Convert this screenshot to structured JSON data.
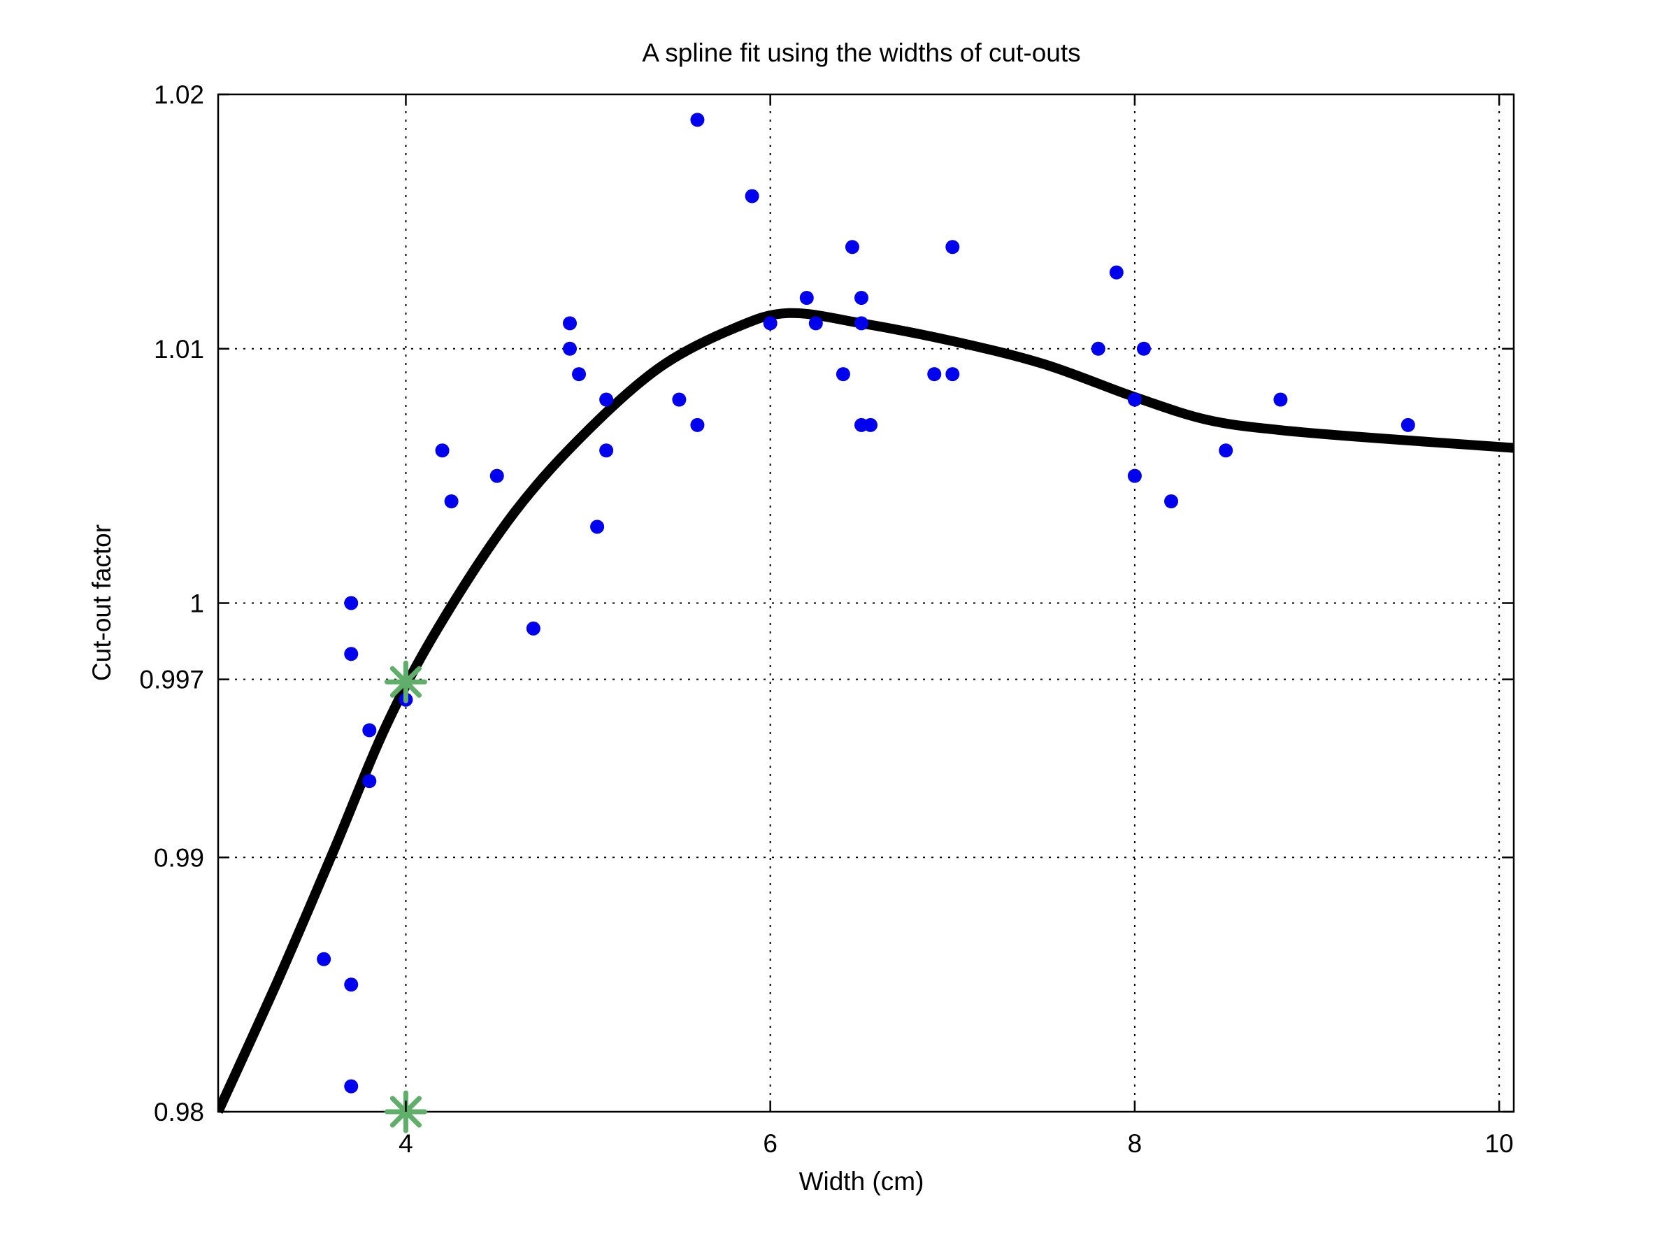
{
  "chart_data": {
    "type": "scatter",
    "title": "A spline fit using the widths of cut-outs",
    "xlabel": "Width (cm)",
    "ylabel": "Cut-out factor",
    "xlim": [
      2.97,
      10.08
    ],
    "ylim": [
      0.98,
      1.02
    ],
    "xticks": [
      4,
      6,
      8,
      10
    ],
    "xtick_labels": [
      "4",
      "6",
      "8",
      "10"
    ],
    "yticks": [
      0.98,
      0.99,
      0.997,
      1.0,
      1.01,
      1.02
    ],
    "ytick_labels": [
      "0.98",
      "0.99",
      "0.997",
      "1",
      "1.01",
      "1.02"
    ],
    "grid": true,
    "colors": {
      "points": "#0000ee",
      "spline": "#000000",
      "markers": "#5fae6a",
      "grid": "#000000"
    },
    "series": [
      {
        "kind": "scatter",
        "points": [
          [
            3.55,
            0.986
          ],
          [
            3.7,
            0.985
          ],
          [
            3.7,
            0.981
          ],
          [
            3.8,
            0.993
          ],
          [
            3.8,
            0.995
          ],
          [
            3.7,
            0.998
          ],
          [
            3.7,
            1.0
          ],
          [
            4.0,
            0.9962
          ],
          [
            4.2,
            1.006
          ],
          [
            4.25,
            1.004
          ],
          [
            4.5,
            1.005
          ],
          [
            4.7,
            0.999
          ],
          [
            4.9,
            1.011
          ],
          [
            4.9,
            1.01
          ],
          [
            4.95,
            1.009
          ],
          [
            5.05,
            1.003
          ],
          [
            5.1,
            1.008
          ],
          [
            5.1,
            1.006
          ],
          [
            5.5,
            1.008
          ],
          [
            5.6,
            1.007
          ],
          [
            5.6,
            1.019
          ],
          [
            5.9,
            1.016
          ],
          [
            6.0,
            1.011
          ],
          [
            6.2,
            1.012
          ],
          [
            6.25,
            1.011
          ],
          [
            6.4,
            1.009
          ],
          [
            6.45,
            1.014
          ],
          [
            6.5,
            1.012
          ],
          [
            6.5,
            1.011
          ],
          [
            6.5,
            1.007
          ],
          [
            6.55,
            1.007
          ],
          [
            6.9,
            1.009
          ],
          [
            7.0,
            1.009
          ],
          [
            7.0,
            1.014
          ],
          [
            7.8,
            1.01
          ],
          [
            7.9,
            1.013
          ],
          [
            8.0,
            1.008
          ],
          [
            8.0,
            1.005
          ],
          [
            8.05,
            1.01
          ],
          [
            8.2,
            1.004
          ],
          [
            8.5,
            1.006
          ],
          [
            8.8,
            1.008
          ],
          [
            9.5,
            1.007
          ]
        ]
      },
      {
        "kind": "spline",
        "points": [
          [
            2.97,
            0.98
          ],
          [
            3.3,
            0.9852
          ],
          [
            3.6,
            0.9902
          ],
          [
            3.9,
            0.9953
          ],
          [
            4.2,
            0.9993
          ],
          [
            4.6,
            1.0036
          ],
          [
            5.0,
            1.0068
          ],
          [
            5.4,
            1.0093
          ],
          [
            5.8,
            1.0108
          ],
          [
            6.1,
            1.0114
          ],
          [
            6.5,
            1.011
          ],
          [
            7.0,
            1.0103
          ],
          [
            7.5,
            1.0094
          ],
          [
            8.0,
            1.0081
          ],
          [
            8.4,
            1.0072
          ],
          [
            8.8,
            1.0068
          ],
          [
            9.3,
            1.0065
          ],
          [
            10.08,
            1.0061
          ]
        ]
      },
      {
        "kind": "marker",
        "points": [
          [
            4.0,
            0.9969
          ],
          [
            4.0,
            0.98
          ]
        ]
      }
    ]
  }
}
